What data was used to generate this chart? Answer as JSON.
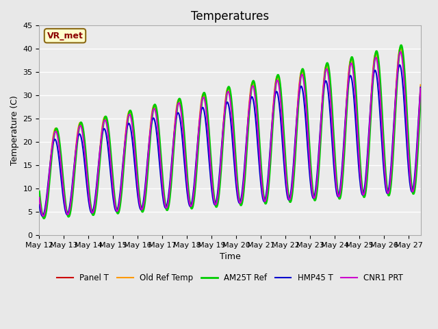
{
  "title": "Temperatures",
  "xlabel": "Time",
  "ylabel": "Temperature (C)",
  "annotation": "VR_met",
  "ylim": [
    0,
    45
  ],
  "xlim": [
    0,
    15.5
  ],
  "x_tick_labels": [
    "May 12",
    "May 13",
    "May 14",
    "May 15",
    "May 16",
    "May 17",
    "May 18",
    "May 19",
    "May 20",
    "May 21",
    "May 22",
    "May 23",
    "May 24",
    "May 25",
    "May 26",
    "May 27"
  ],
  "series_names": [
    "Panel T",
    "Old Ref Temp",
    "AM25T Ref",
    "HMP45 T",
    "CNR1 PRT"
  ],
  "series_colors": [
    "#cc0000",
    "#ff9900",
    "#00cc00",
    "#0000cc",
    "#cc00cc"
  ],
  "series_lw": [
    1.5,
    1.5,
    2.0,
    1.5,
    1.5
  ],
  "bg_color": "#e8e8e8",
  "plot_bg": "#ebebeb",
  "grid_color": "#ffffff",
  "title_fontsize": 12,
  "label_fontsize": 9,
  "tick_fontsize": 8
}
